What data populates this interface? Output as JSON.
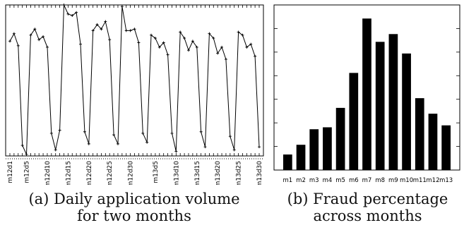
{
  "chart_data": [
    {
      "type": "line",
      "x": [
        "m12d1",
        "m12d2",
        "m12d3",
        "m12d4",
        "m12d5",
        "m12d6",
        "m12d7",
        "m12d8",
        "m12d9",
        "m12d10",
        "m12d11",
        "m12d12",
        "m12d13",
        "m12d14",
        "m12d15",
        "m12d16",
        "m12d17",
        "m12d18",
        "m12d19",
        "m12d20",
        "m12d21",
        "m12d22",
        "m12d23",
        "m12d24",
        "m12d25",
        "m12d26",
        "m12d27",
        "m12d28",
        "m12d29",
        "m12d30",
        "m12d31",
        "m13d1",
        "m13d2",
        "m13d3",
        "m13d4",
        "m13d5",
        "m13d6",
        "m13d7",
        "m13d8",
        "m13d9",
        "m13d10",
        "m13d11",
        "m13d12",
        "m13d13",
        "m13d14",
        "m13d15",
        "m13d16",
        "m13d17",
        "m13d18",
        "m13d19",
        "m13d20",
        "m13d21",
        "m13d22",
        "m13d23",
        "m13d24",
        "m13d25",
        "m13d26",
        "m13d27",
        "m13d28",
        "m13d29",
        "m13d30"
      ],
      "values": [
        0.76,
        0.81,
        0.73,
        0.07,
        0.01,
        0.8,
        0.84,
        0.77,
        0.79,
        0.72,
        0.15,
        0.04,
        0.17,
        1.0,
        0.94,
        0.93,
        0.95,
        0.74,
        0.16,
        0.08,
        0.83,
        0.87,
        0.84,
        0.89,
        0.77,
        0.14,
        0.08,
        0.99,
        0.83,
        0.83,
        0.84,
        0.75,
        0.15,
        0.09,
        0.8,
        0.78,
        0.72,
        0.75,
        0.67,
        0.15,
        0.03,
        0.82,
        0.78,
        0.7,
        0.76,
        0.72,
        0.16,
        0.06,
        0.81,
        0.78,
        0.68,
        0.72,
        0.64,
        0.13,
        0.04,
        0.82,
        0.8,
        0.72,
        0.74,
        0.66,
        0.06
      ],
      "tick_labels": [
        "m12d1",
        "m12d5",
        "m12d10",
        "m12d15",
        "m12d20",
        "m12d25",
        "m12d30",
        "m13d5",
        "m13d10",
        "m13d15",
        "m13d20",
        "m13d25",
        "m13d30"
      ],
      "tick_positions": [
        "m12d1",
        "m12d5",
        "m12d10",
        "m12d15",
        "m12d20",
        "m12d25",
        "m12d30",
        "m13d5",
        "m13d10",
        "m13d15",
        "m13d20",
        "m13d25",
        "m13d30"
      ],
      "ylim": [
        0,
        1
      ],
      "title": "",
      "xlabel": "",
      "ylabel": "",
      "grid": false,
      "line_color": "#000000",
      "caption_lines": [
        "(a) Daily application volume",
        "for two months"
      ]
    },
    {
      "type": "bar",
      "categories": [
        "m1",
        "m2",
        "m3",
        "m4",
        "m5",
        "m6",
        "m7",
        "m8",
        "m9",
        "m10",
        "m11",
        "m12",
        "m13"
      ],
      "values": [
        0.08,
        0.13,
        0.21,
        0.22,
        0.32,
        0.5,
        0.78,
        0.66,
        0.7,
        0.6,
        0.37,
        0.29,
        0.23
      ],
      "ylim": [
        0,
        0.85
      ],
      "title": "",
      "xlabel": "",
      "ylabel": "",
      "grid": false,
      "bar_color": "#000000",
      "caption_lines": [
        "(b) Fraud percentage",
        "across months"
      ]
    }
  ]
}
